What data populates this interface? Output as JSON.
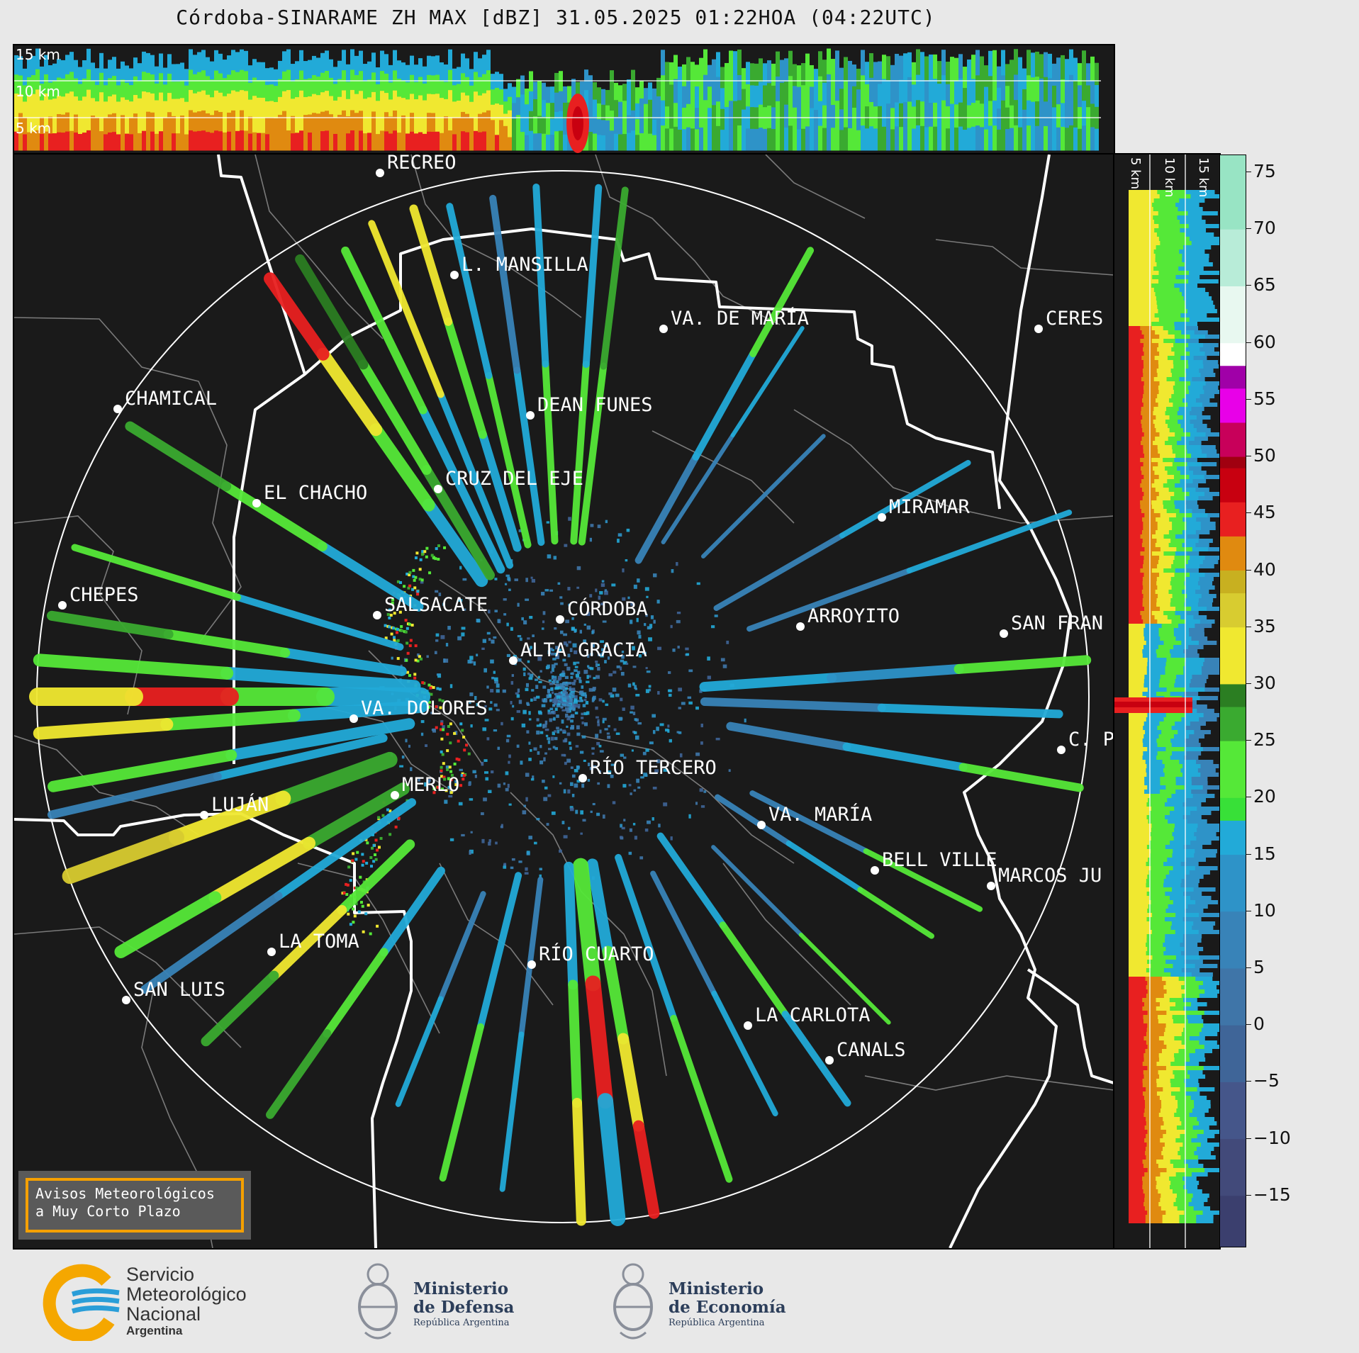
{
  "title": "Córdoba-SINARAME ZH MAX [dBZ] 31.05.2025 01:22HOA (04:22UTC)",
  "top_panel": {
    "height_labels": [
      "15 km",
      "10 km",
      "5 km"
    ]
  },
  "side_panel": {
    "height_labels": [
      "5 km",
      "10 km",
      "15 km"
    ]
  },
  "colorbar": {
    "unit": "dBZ",
    "ticks": [
      "75",
      "70",
      "65",
      "60",
      "55",
      "50",
      "45",
      "40",
      "35",
      "30",
      "25",
      "20",
      "15",
      "10",
      "5",
      "0",
      "−5",
      "−10",
      "−15"
    ],
    "range": [
      -19.5,
      76.5
    ],
    "colors": {
      "lt_m15": "#3b3f6e",
      "m15": "#424a7a",
      "m10": "#45568a",
      "m5": "#3f6598",
      "0": "#3f75a8",
      "5": "#3883b8",
      "10": "#2e93c8",
      "15": "#22aad8",
      "18": "#38e038",
      "20": "#55e838",
      "25": "#3aaa30",
      "28": "#2b7e22",
      "30": "#f0e830",
      "35": "#d8cc30",
      "38": "#c8b020",
      "40": "#e08a10",
      "43": "#e82020",
      "46": "#c80010",
      "49": "#a00010",
      "50": "#c8005a",
      "53": "#e800e8",
      "56": "#a000a8",
      "58": "#ffffff",
      "60": "#e8f8f0",
      "65": "#b8ecd8",
      "70": "#98e4c4"
    }
  },
  "cities": [
    {
      "name": "RECREO"
    },
    {
      "name": "L. MANSILLA"
    },
    {
      "name": "VA. DE MARÍA"
    },
    {
      "name": "CERES"
    },
    {
      "name": "CHAMICAL"
    },
    {
      "name": "DEAN FUNES"
    },
    {
      "name": "CRUZ DEL EJE"
    },
    {
      "name": "EL CHACHO"
    },
    {
      "name": "MIRAMAR"
    },
    {
      "name": "CHEPES"
    },
    {
      "name": "SALSACATE"
    },
    {
      "name": "CÓRDOBA"
    },
    {
      "name": "ARROYITO"
    },
    {
      "name": "SAN FRAN"
    },
    {
      "name": "ALTA GRACIA"
    },
    {
      "name": "VA. DOLORES"
    },
    {
      "name": "C. P"
    },
    {
      "name": "RÍO TERCERO"
    },
    {
      "name": "MERLO"
    },
    {
      "name": "LUJÁN"
    },
    {
      "name": "VA. MARÍA"
    },
    {
      "name": "BELL VILLE"
    },
    {
      "name": "MARCOS JU"
    },
    {
      "name": "LA TOMA"
    },
    {
      "name": "RÍO CUARTO"
    },
    {
      "name": "SAN LUIS"
    },
    {
      "name": "LA CARLOTA"
    },
    {
      "name": "CANALS"
    }
  ],
  "alert": {
    "line1": "Avisos Meteorológicos",
    "line2": "a Muy Corto Plazo"
  },
  "logos": {
    "smn": {
      "line1": "Servicio",
      "line2": "Meteorológico",
      "line3": "Nacional",
      "line4": "Argentina"
    },
    "defensa": {
      "line1": "Ministerio",
      "line2": "de Defensa",
      "line3": "República Argentina"
    },
    "economia": {
      "line1": "Ministerio",
      "line2": "de Economía",
      "line3": "República Argentina"
    }
  }
}
